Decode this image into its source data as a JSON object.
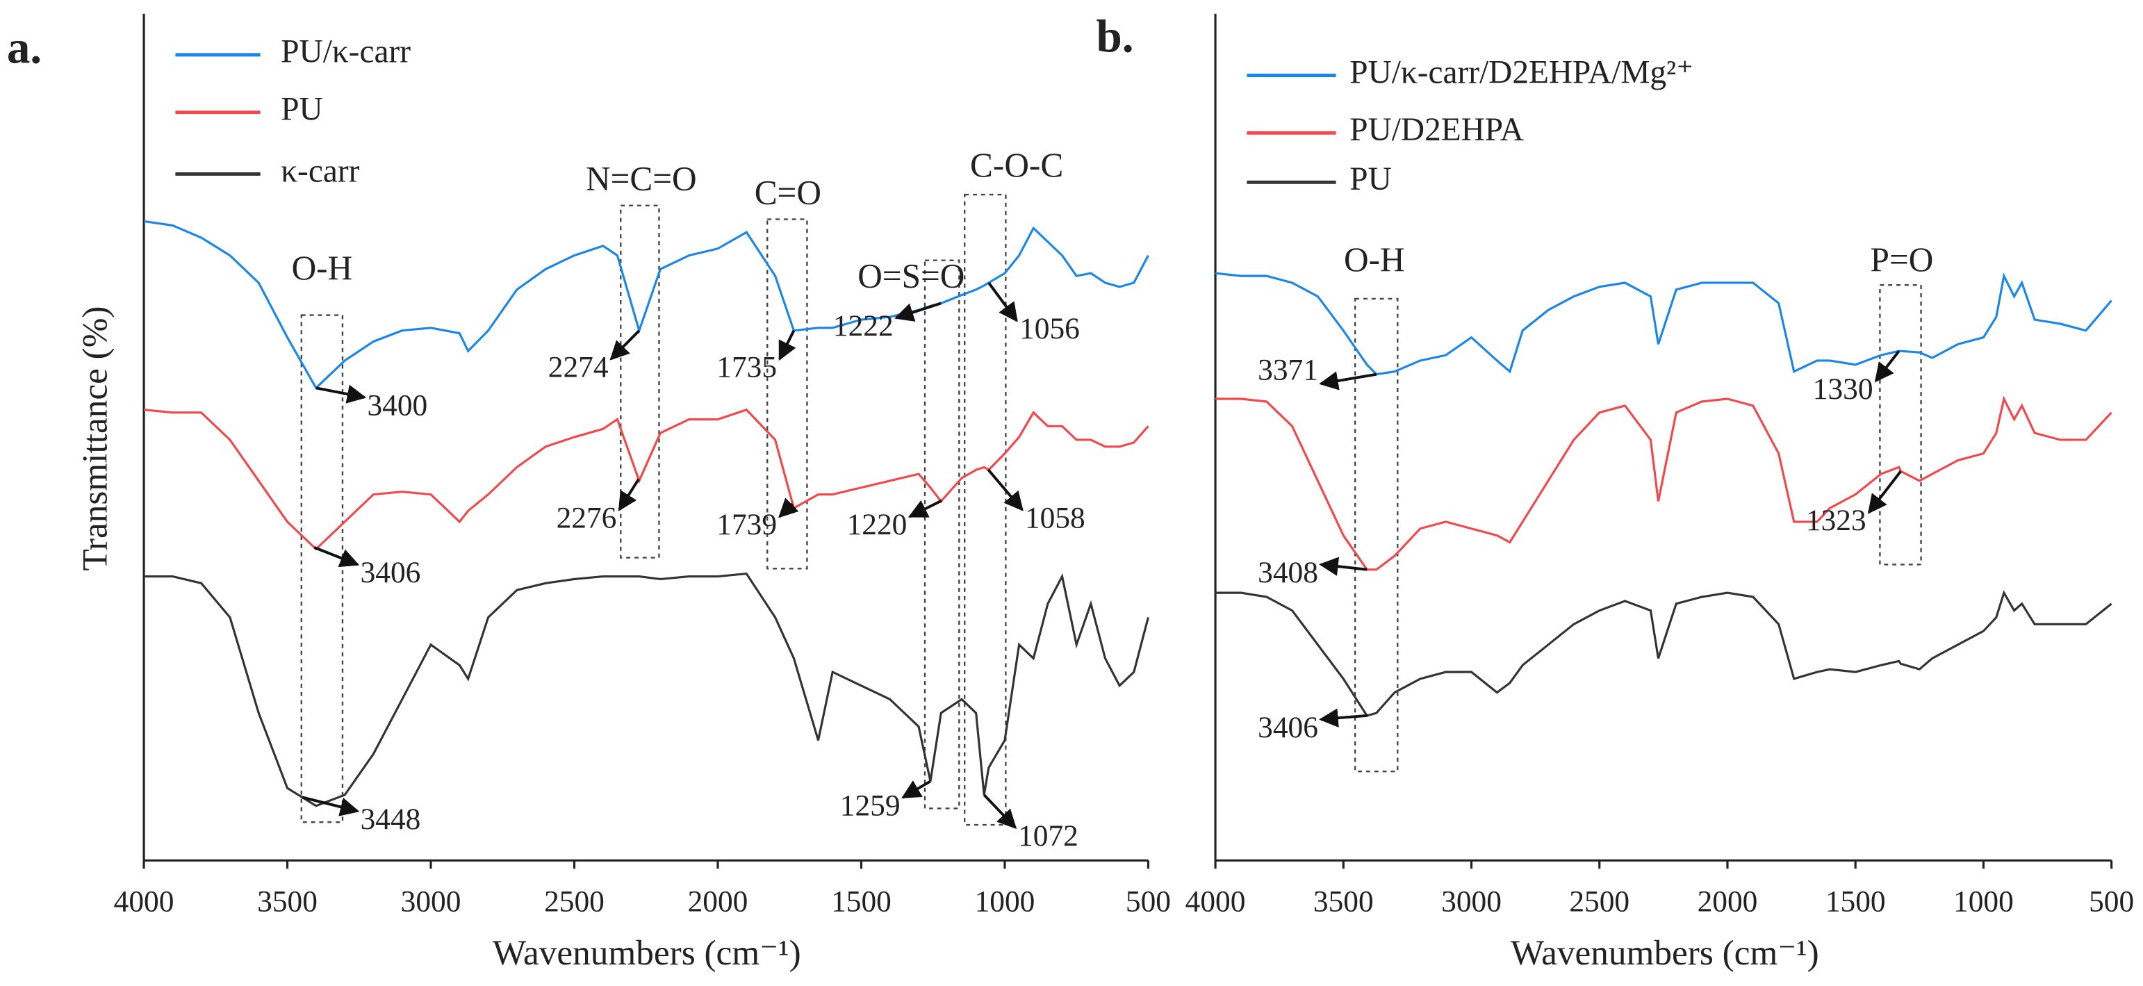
{
  "chart_data": [
    {
      "type": "line",
      "panel_label": "a.",
      "y_label": "Transmittance (%)",
      "x_label": "Wavenumbers (cm⁻¹)",
      "xlim": [
        4000,
        500
      ],
      "xticks": [
        4000,
        3500,
        3000,
        2500,
        2000,
        1500,
        1000,
        500
      ],
      "ylim": [
        0,
        620
      ],
      "regions": [
        "O-H",
        "N=C=O",
        "C=O",
        "O=S=O",
        "C-O-C"
      ],
      "x": [
        4000,
        3900,
        3800,
        3700,
        3600,
        3500,
        3400,
        3300,
        3200,
        3100,
        3000,
        2900,
        2870,
        2800,
        2700,
        2600,
        2500,
        2400,
        2350,
        2274,
        2200,
        2100,
        2000,
        1900,
        1800,
        1735,
        1650,
        1600,
        1500,
        1400,
        1300,
        1259,
        1222,
        1150,
        1100,
        1072,
        1056,
        1000,
        950,
        900,
        850,
        800,
        750,
        700,
        650,
        600,
        550,
        500
      ],
      "series": [
        {
          "name": "PU/κ-carr",
          "color": "#1a86e8",
          "peaks": [
            3400,
            2274,
            1735,
            1222,
            1056
          ],
          "values": [
            468,
            465,
            456,
            443,
            423,
            383,
            346,
            366,
            380,
            388,
            390,
            386,
            373,
            388,
            418,
            433,
            443,
            450,
            443,
            388,
            433,
            443,
            448,
            460,
            428,
            388,
            390,
            390,
            396,
            398,
            403,
            406,
            408,
            414,
            418,
            421,
            423,
            430,
            443,
            463,
            453,
            443,
            428,
            430,
            423,
            420,
            423,
            443
          ]
        },
        {
          "name": "PU",
          "color": "#f0484b",
          "peaks": [
            3406,
            2276,
            1739,
            1220,
            1058
          ],
          "values": [
            330,
            328,
            328,
            308,
            278,
            248,
            228,
            248,
            268,
            270,
            268,
            248,
            256,
            268,
            288,
            303,
            310,
            316,
            323,
            278,
            313,
            323,
            323,
            330,
            308,
            258,
            268,
            268,
            273,
            278,
            283,
            273,
            263,
            280,
            286,
            288,
            286,
            298,
            310,
            328,
            318,
            318,
            308,
            308,
            303,
            303,
            306,
            318
          ]
        },
        {
          "name": "κ-carr",
          "color": "#333333",
          "peaks": [
            3448,
            1259,
            1072
          ],
          "values": [
            208,
            208,
            203,
            178,
            108,
            53,
            40,
            48,
            78,
            118,
            158,
            143,
            133,
            178,
            198,
            203,
            206,
            208,
            208,
            208,
            206,
            208,
            208,
            210,
            178,
            148,
            88,
            138,
            128,
            118,
            98,
            58,
            108,
            118,
            108,
            48,
            68,
            88,
            158,
            148,
            188,
            208,
            158,
            188,
            148,
            128,
            138,
            178
          ]
        }
      ]
    },
    {
      "type": "line",
      "panel_label": "b.",
      "x_label": "Wavenumbers (cm⁻¹)",
      "xlim": [
        4000,
        500
      ],
      "xticks": [
        4000,
        3500,
        3000,
        2500,
        2000,
        1500,
        1000,
        500
      ],
      "ylim": [
        0,
        620
      ],
      "regions": [
        "O-H",
        "P=O"
      ],
      "x": [
        4000,
        3900,
        3800,
        3700,
        3600,
        3500,
        3408,
        3371,
        3300,
        3200,
        3100,
        3000,
        2900,
        2850,
        2800,
        2700,
        2600,
        2500,
        2400,
        2300,
        2270,
        2200,
        2100,
        2000,
        1900,
        1800,
        1740,
        1650,
        1600,
        1500,
        1400,
        1330,
        1323,
        1250,
        1200,
        1100,
        1000,
        950,
        920,
        880,
        850,
        800,
        700,
        600,
        500
      ],
      "series": [
        {
          "name": "PU/κ-carr/D2EHPA/Mg²⁺",
          "color": "#1a86e8",
          "peaks": [
            3371,
            1330
          ],
          "values": [
            430,
            428,
            428,
            423,
            413,
            388,
            363,
            356,
            358,
            366,
            370,
            383,
            366,
            358,
            388,
            403,
            413,
            420,
            423,
            413,
            378,
            418,
            423,
            423,
            423,
            408,
            358,
            366,
            366,
            363,
            370,
            373,
            373,
            372,
            368,
            378,
            383,
            398,
            428,
            413,
            423,
            396,
            393,
            388,
            410
          ]
        },
        {
          "name": "PU/D2EHPA",
          "color": "#f0484b",
          "peaks": [
            3408,
            1323
          ],
          "values": [
            338,
            338,
            336,
            318,
            278,
            238,
            213,
            213,
            223,
            243,
            248,
            243,
            238,
            233,
            248,
            278,
            308,
            328,
            333,
            308,
            263,
            328,
            336,
            338,
            333,
            298,
            248,
            248,
            258,
            268,
            283,
            288,
            285,
            278,
            283,
            293,
            298,
            313,
            338,
            323,
            333,
            313,
            308,
            308,
            328
          ]
        },
        {
          "name": "PU",
          "color": "#333333",
          "peaks": [
            3406
          ],
          "values": [
            196,
            196,
            193,
            183,
            158,
            133,
            106,
            108,
            123,
            133,
            138,
            138,
            123,
            130,
            143,
            158,
            173,
            183,
            190,
            183,
            148,
            188,
            193,
            196,
            193,
            173,
            133,
            138,
            140,
            138,
            143,
            146,
            144,
            140,
            148,
            158,
            168,
            178,
            196,
            183,
            188,
            173,
            173,
            173,
            188
          ]
        }
      ]
    }
  ]
}
